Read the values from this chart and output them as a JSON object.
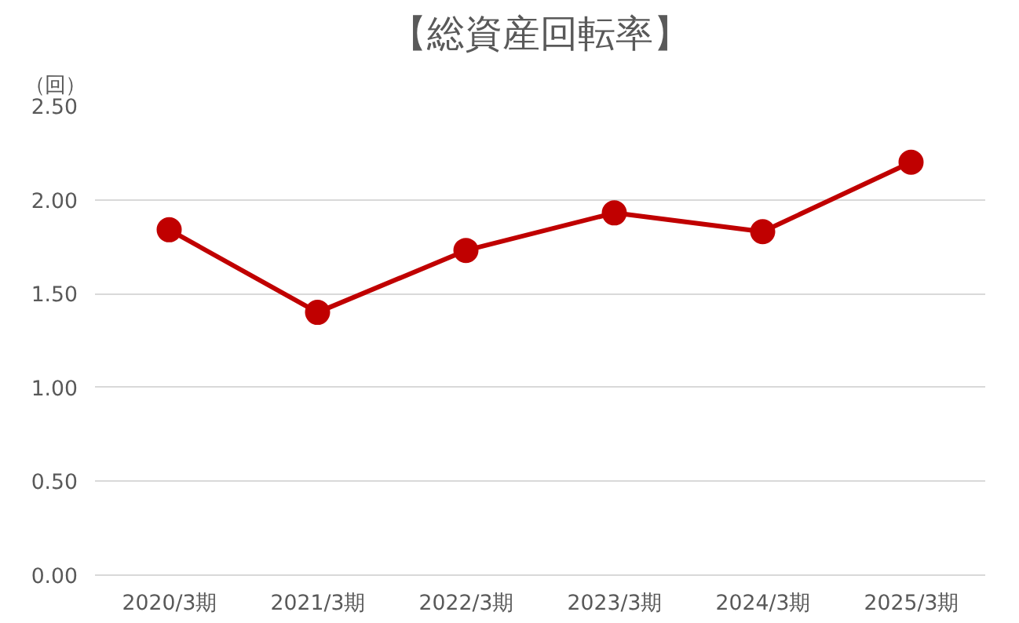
{
  "chart_data": {
    "type": "line",
    "title": "【総資産回転率】",
    "ylabel": "（回）",
    "categories": [
      "2020/3期",
      "2021/3期",
      "2022/3期",
      "2023/3期",
      "2024/3期",
      "2025/3期"
    ],
    "series": [
      {
        "color": "#c00000",
        "values": [
          1.84,
          1.4,
          1.73,
          1.93,
          1.83,
          2.2
        ]
      }
    ],
    "ylim": [
      0,
      2.5
    ],
    "yticks": [
      {
        "value": 0,
        "label": "0.00"
      },
      {
        "value": 0.5,
        "label": "0.50"
      },
      {
        "value": 1,
        "label": "1.00"
      },
      {
        "value": 1.5,
        "label": "1.50"
      },
      {
        "value": 2,
        "label": "2.00"
      },
      {
        "value": 2.5,
        "label": "2.50"
      }
    ],
    "grid": "y",
    "marker": "circle",
    "line_style": "solid"
  }
}
